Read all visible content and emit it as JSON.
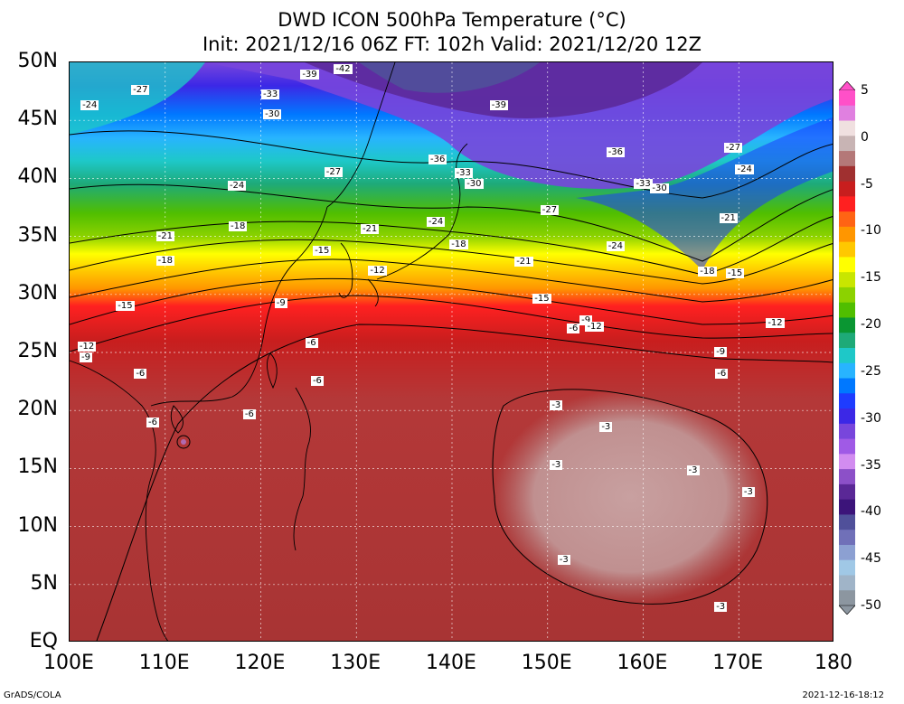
{
  "header": {
    "title_line1": "DWD ICON 500hPa Temperature (°C)",
    "title_line2": "Init: 2021/12/16 06Z  FT: 102h  Valid: 2021/12/20 12Z"
  },
  "map": {
    "lat_labels": [
      "50N",
      "45N",
      "40N",
      "35N",
      "30N",
      "25N",
      "20N",
      "15N",
      "10N",
      "5N",
      "EQ"
    ],
    "lon_labels": [
      "100E",
      "110E",
      "120E",
      "130E",
      "140E",
      "150E",
      "160E",
      "170E",
      "180"
    ],
    "contour_labels": [
      {
        "text": "-42",
        "lon": 128.4,
        "lat": 49.4
      },
      {
        "text": "-39",
        "lon": 124.9,
        "lat": 48.9
      },
      {
        "text": "-27",
        "lon": 107.2,
        "lat": 47.6
      },
      {
        "text": "-33",
        "lon": 120.8,
        "lat": 47.2
      },
      {
        "text": "-24",
        "lon": 101.9,
        "lat": 46.3
      },
      {
        "text": "-39",
        "lon": 144.7,
        "lat": 46.3
      },
      {
        "text": "-30",
        "lon": 121.0,
        "lat": 45.5
      },
      {
        "text": "-27",
        "lon": 169.2,
        "lat": 42.6
      },
      {
        "text": "-36",
        "lon": 156.9,
        "lat": 42.2
      },
      {
        "text": "-36",
        "lon": 138.3,
        "lat": 41.6
      },
      {
        "text": "-24",
        "lon": 170.4,
        "lat": 40.7
      },
      {
        "text": "-27",
        "lon": 127.4,
        "lat": 40.5
      },
      {
        "text": "-33",
        "lon": 141.0,
        "lat": 40.4
      },
      {
        "text": "-30",
        "lon": 142.1,
        "lat": 39.5
      },
      {
        "text": "-33",
        "lon": 159.8,
        "lat": 39.5
      },
      {
        "text": "-30",
        "lon": 161.5,
        "lat": 39.1
      },
      {
        "text": "-24",
        "lon": 117.3,
        "lat": 39.3
      },
      {
        "text": "-27",
        "lon": 150.0,
        "lat": 37.2
      },
      {
        "text": "-21",
        "lon": 168.7,
        "lat": 36.5
      },
      {
        "text": "-24",
        "lon": 138.1,
        "lat": 36.2
      },
      {
        "text": "-18",
        "lon": 117.4,
        "lat": 35.8
      },
      {
        "text": "-21",
        "lon": 131.2,
        "lat": 35.6
      },
      {
        "text": "-21",
        "lon": 109.8,
        "lat": 35.0
      },
      {
        "text": "-18",
        "lon": 140.5,
        "lat": 34.3
      },
      {
        "text": "-24",
        "lon": 156.9,
        "lat": 34.1
      },
      {
        "text": "-15",
        "lon": 126.2,
        "lat": 33.7
      },
      {
        "text": "-21",
        "lon": 147.3,
        "lat": 32.8
      },
      {
        "text": "-18",
        "lon": 109.8,
        "lat": 32.9
      },
      {
        "text": "-18",
        "lon": 166.5,
        "lat": 31.9
      },
      {
        "text": "-15",
        "lon": 169.4,
        "lat": 31.8
      },
      {
        "text": "-12",
        "lon": 132.0,
        "lat": 32.0
      },
      {
        "text": "-15",
        "lon": 149.2,
        "lat": 29.6
      },
      {
        "text": "-9",
        "lon": 122.2,
        "lat": 29.2
      },
      {
        "text": "-15",
        "lon": 105.6,
        "lat": 29.0
      },
      {
        "text": "-9",
        "lon": 154.1,
        "lat": 27.7
      },
      {
        "text": "-12",
        "lon": 154.7,
        "lat": 27.2
      },
      {
        "text": "-12",
        "lon": 173.6,
        "lat": 27.5
      },
      {
        "text": "-6",
        "lon": 152.8,
        "lat": 27.0
      },
      {
        "text": "-6",
        "lon": 125.4,
        "lat": 25.8
      },
      {
        "text": "-12",
        "lon": 101.6,
        "lat": 25.5
      },
      {
        "text": "-9",
        "lon": 101.8,
        "lat": 24.5
      },
      {
        "text": "-9",
        "lon": 168.2,
        "lat": 25.0
      },
      {
        "text": "-6",
        "lon": 107.5,
        "lat": 23.1
      },
      {
        "text": "-6",
        "lon": 126.0,
        "lat": 22.5
      },
      {
        "text": "-6",
        "lon": 168.3,
        "lat": 23.1
      },
      {
        "text": "-3",
        "lon": 151.0,
        "lat": 20.4
      },
      {
        "text": "-6",
        "lon": 118.9,
        "lat": 19.6
      },
      {
        "text": "-6",
        "lon": 108.8,
        "lat": 18.9
      },
      {
        "text": "-3",
        "lon": 156.2,
        "lat": 18.5
      },
      {
        "text": "-3",
        "lon": 151.0,
        "lat": 15.3
      },
      {
        "text": "-3",
        "lon": 165.3,
        "lat": 14.8
      },
      {
        "text": "-3",
        "lon": 171.1,
        "lat": 12.9
      },
      {
        "text": "-3",
        "lon": 151.8,
        "lat": 7.1
      },
      {
        "text": "-3",
        "lon": 168.2,
        "lat": 3.0
      }
    ],
    "tc_marker_color": "#b06ab0"
  },
  "colorbar": {
    "labels": [
      "5",
      "0",
      "-5",
      "-10",
      "-15",
      "-20",
      "-25",
      "-30",
      "-35",
      "-40",
      "-45",
      "-50"
    ],
    "colors": [
      "#ff50c8",
      "#e080e0",
      "#f0e0e0",
      "#c8b4b4",
      "#b47878",
      "#a03030",
      "#c81e1e",
      "#ff2020",
      "#ff6414",
      "#ff9600",
      "#ffc800",
      "#ffff00",
      "#c8e600",
      "#8cd200",
      "#50be00",
      "#0a9632",
      "#1eaa78",
      "#1ec8c8",
      "#28b4ff",
      "#0078ff",
      "#1e3cff",
      "#3c28e6",
      "#7846dc",
      "#a05ae6",
      "#d28cf0",
      "#8c50c8",
      "#5a2896",
      "#3c147a",
      "#50509a",
      "#7070b8",
      "#8ca0d2",
      "#a0c8e6",
      "#a0b4c8",
      "#8c96a0"
    ]
  },
  "footer": {
    "left": "GrADS/COLA",
    "right": "2021-12-16-18:12"
  }
}
